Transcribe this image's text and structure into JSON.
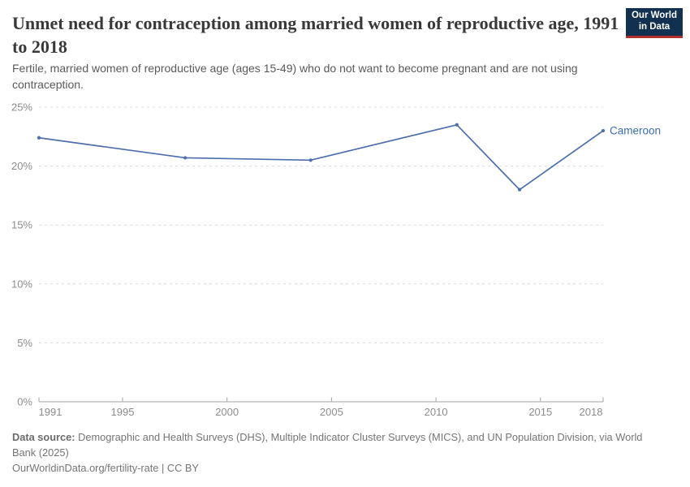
{
  "header": {
    "title": "Unmet need for contraception among married women of reproductive age, 1991 to 2018",
    "subtitle": "Fertile, married women of reproductive age (ages 15-49) who do not want to become pregnant and are not using contraception.",
    "logo": {
      "line1": "Our World",
      "line2": "in Data",
      "bg_color": "#12304f",
      "accent_color": "#b13029",
      "text_color": "#ffffff"
    }
  },
  "chart_data": {
    "type": "line",
    "title": "Unmet need for contraception among married women of reproductive age, 1991 to 2018",
    "x": [
      1991,
      1998,
      2004,
      2011,
      2014,
      2018
    ],
    "series": [
      {
        "name": "Cameroon",
        "values": [
          22.4,
          20.7,
          20.5,
          23.5,
          18,
          23
        ],
        "color": "#4C6EAC",
        "label_color": "#3D6CB3"
      }
    ],
    "xlabel": "",
    "ylabel": "",
    "xlim": [
      1991,
      2018
    ],
    "ylim": [
      0,
      25
    ],
    "x_ticks": [
      1991,
      1995,
      2000,
      2005,
      2010,
      2015,
      2018
    ],
    "y_ticks": [
      0,
      5,
      10,
      15,
      20,
      25
    ],
    "y_tick_suffix": "%",
    "grid": "horizontal-dashed",
    "legend_position": "line-end-label",
    "axis_color": "#a5a5a5",
    "grid_color": "#dcdcdc",
    "tick_label_color": "#8d8d8d"
  },
  "footer": {
    "data_source_label": "Data source:",
    "data_source_text": " Demographic and Health Surveys (DHS), Multiple Indicator Cluster Surveys (MICS), and UN Population Division, via World Bank (2025)",
    "license_line": "OurWorldinData.org/fertility-rate | CC BY"
  }
}
